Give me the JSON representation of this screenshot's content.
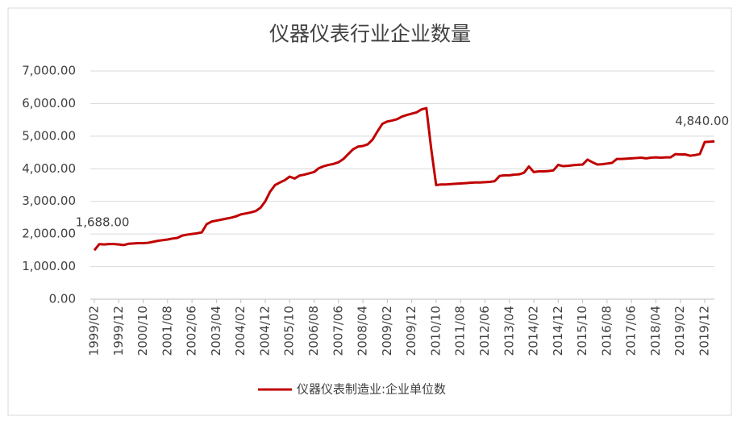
{
  "chart_data": {
    "type": "line",
    "title": "仪器仪表行业企业数量",
    "categories": [
      "1999/02",
      null,
      null,
      null,
      null,
      "1999/12",
      null,
      null,
      null,
      null,
      "2000/10",
      null,
      null,
      null,
      null,
      "2001/08",
      null,
      null,
      null,
      null,
      "2002/06",
      null,
      null,
      null,
      null,
      "2003/04",
      null,
      null,
      null,
      null,
      "2004/02",
      null,
      null,
      null,
      null,
      "2004/12",
      null,
      null,
      null,
      null,
      "2005/10",
      null,
      null,
      null,
      null,
      "2006/08",
      null,
      null,
      null,
      null,
      "2007/06",
      null,
      null,
      null,
      null,
      "2008/04",
      null,
      null,
      null,
      null,
      "2009/02",
      null,
      null,
      null,
      null,
      "2009/12",
      null,
      null,
      null,
      null,
      "2010/10",
      null,
      null,
      null,
      null,
      "2011/08",
      null,
      null,
      null,
      null,
      "2012/06",
      null,
      null,
      null,
      null,
      "2013/04",
      null,
      null,
      null,
      null,
      "2014/02",
      null,
      null,
      null,
      null,
      "2014/12",
      null,
      null,
      null,
      null,
      "2015/10",
      null,
      null,
      null,
      null,
      "2016/08",
      null,
      null,
      null,
      null,
      "2017/06",
      null,
      null,
      null,
      null,
      "2018/04",
      null,
      null,
      null,
      null,
      "2019/02",
      null,
      null,
      null,
      null,
      "2019/12",
      null,
      null
    ],
    "series": [
      {
        "name": "仪器仪表制造业:企业单位数",
        "color": "#c00000",
        "values": [
          1500,
          1688,
          1680,
          1690,
          1690,
          1680,
          1660,
          1700,
          1710,
          1720,
          1720,
          1730,
          1760,
          1790,
          1810,
          1830,
          1860,
          1880,
          1950,
          1980,
          2000,
          2020,
          2050,
          2300,
          2380,
          2410,
          2440,
          2470,
          2500,
          2540,
          2600,
          2630,
          2660,
          2700,
          2800,
          3000,
          3300,
          3500,
          3580,
          3650,
          3760,
          3700,
          3790,
          3820,
          3860,
          3900,
          4020,
          4080,
          4120,
          4150,
          4200,
          4300,
          4450,
          4600,
          4680,
          4700,
          4750,
          4900,
          5150,
          5380,
          5450,
          5480,
          5520,
          5600,
          5650,
          5690,
          5730,
          5820,
          5860,
          4600,
          3500,
          3520,
          3520,
          3530,
          3540,
          3550,
          3560,
          3570,
          3580,
          3580,
          3590,
          3600,
          3620,
          3780,
          3800,
          3800,
          3820,
          3830,
          3880,
          4070,
          3900,
          3920,
          3920,
          3930,
          3950,
          4120,
          4080,
          4090,
          4110,
          4120,
          4130,
          4280,
          4200,
          4130,
          4140,
          4160,
          4180,
          4300,
          4300,
          4310,
          4320,
          4330,
          4340,
          4320,
          4340,
          4350,
          4340,
          4350,
          4350,
          4450,
          4440,
          4440,
          4400,
          4420,
          4450,
          4820,
          4830,
          4840
        ],
        "value_labels": [
          null,
          "1,688.00",
          null,
          null,
          null,
          null,
          null,
          null,
          null,
          null,
          null,
          null,
          null,
          null,
          null,
          null,
          null,
          null,
          null,
          null,
          null,
          null,
          null,
          null,
          null,
          null,
          null,
          null,
          null,
          null,
          null,
          null,
          null,
          null,
          null,
          null,
          null,
          null,
          null,
          null,
          null,
          null,
          null,
          null,
          null,
          null,
          null,
          null,
          null,
          null,
          null,
          null,
          null,
          null,
          null,
          null,
          null,
          null,
          null,
          null,
          null,
          null,
          null,
          null,
          null,
          null,
          null,
          null,
          null,
          null,
          null,
          null,
          null,
          null,
          null,
          null,
          null,
          null,
          null,
          null,
          null,
          null,
          null,
          null,
          null,
          null,
          null,
          null,
          null,
          null,
          null,
          null,
          null,
          null,
          null,
          null,
          null,
          null,
          null,
          null,
          null,
          null,
          null,
          null,
          null,
          null,
          null,
          null,
          null,
          null,
          null,
          null,
          null,
          null,
          null,
          null,
          null,
          null,
          null,
          null,
          null,
          null,
          null,
          null,
          null,
          null,
          null,
          "4,840.00"
        ]
      }
    ],
    "ylim": [
      0,
      7000
    ],
    "yticks": [
      {
        "value": 0,
        "label": "0.00"
      },
      {
        "value": 1000,
        "label": "1,000.00"
      },
      {
        "value": 2000,
        "label": "2,000.00"
      },
      {
        "value": 3000,
        "label": "3,000.00"
      },
      {
        "value": 4000,
        "label": "4,000.00"
      },
      {
        "value": 5000,
        "label": "5,000.00"
      },
      {
        "value": 6000,
        "label": "6,000.00"
      },
      {
        "value": 7000,
        "label": "7,000.00"
      }
    ],
    "grid": true,
    "legend": "bottom"
  }
}
